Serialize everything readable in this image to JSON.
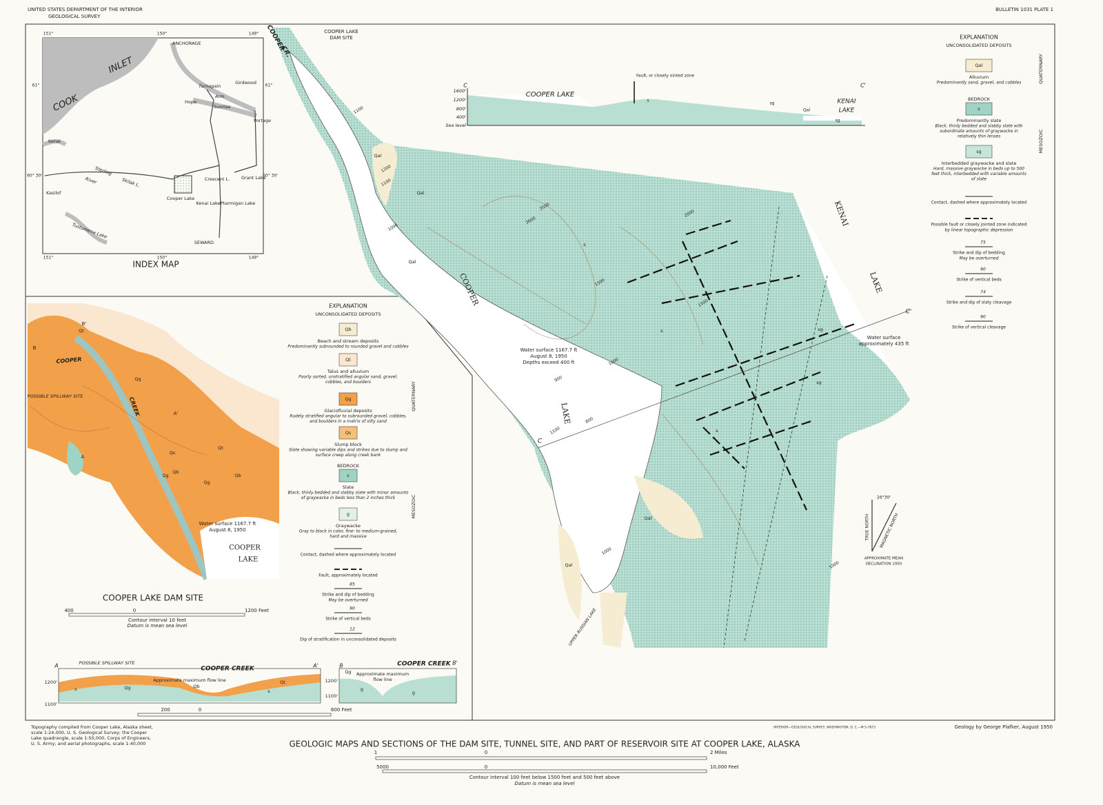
{
  "header": {
    "left_line1": "UNITED STATES DEPARTMENT OF THE INTERIOR",
    "left_line2": "GEOLOGICAL SURVEY",
    "right": "BULLETIN 1031 PLATE 1"
  },
  "index_map": {
    "title": "INDEX MAP",
    "places": [
      "ANCHORAGE",
      "Girdwood",
      "Hope",
      "Sunrise",
      "Portage",
      "Kenai",
      "Kasilof",
      "Crescent L.",
      "Grant Lake",
      "Cooper Lake",
      "Kenai Lake",
      "Ptarmigan Lake",
      "SEWARD",
      "Turnagain",
      "Arm",
      "COOK",
      "INLET",
      "Sterling",
      "River",
      "Skilak L.",
      "Tustumena Lake"
    ],
    "lon_labels": [
      "151°",
      "150°",
      "149°",
      "151°",
      "150°",
      "149°"
    ],
    "lat_labels": [
      "61°",
      "61°",
      "60° 30'",
      "60° 30'"
    ]
  },
  "dam_site": {
    "title": "COOPER LAKE DAM SITE",
    "labels": [
      "COOPER",
      "CREEK",
      "POSSIBLE SPILLWAY SITE",
      "Water surface 1167.7 ft",
      "August 8, 1950",
      "COOPER",
      "LAKE",
      "B",
      "B'",
      "A",
      "A'"
    ],
    "units": [
      "Qb",
      "Qt",
      "Qg",
      "Qs",
      "Qg",
      "Qt",
      "Qb",
      "Qg"
    ],
    "scale": [
      "400",
      "0",
      "1200 Feet"
    ],
    "contour_note": "Contour interval 10 feet",
    "datum_note": "Datum is mean sea level"
  },
  "dam_explanation": {
    "title": "EXPLANATION",
    "unconsolidated": "UNCONSOLIDATED DEPOSITS",
    "bedrock": "BEDROCK",
    "era_upper": "QUATERNARY",
    "era_lower": "MESOZOIC",
    "units": [
      {
        "code": "Qb",
        "name": "Beach and stream deposits",
        "desc": [
          "Predominantly subrounded to rounded gravel and cobbles"
        ]
      },
      {
        "code": "Qt",
        "name": "Talus and alluvium",
        "desc": [
          "Poorly sorted, unstratified angular sand, gravel,",
          "cobbles, and boulders"
        ]
      },
      {
        "code": "Qg",
        "name": "Glaciofluvial deposits",
        "desc": [
          "Rudely stratified angular to subrounded gravel, cobbles,",
          "and boulders in a matrix of silty sand"
        ]
      },
      {
        "code": "Qs",
        "name": "Slump block",
        "desc": [
          "Slate showing variable dips and strikes due to slump and",
          "surface creep along creek bank"
        ]
      },
      {
        "code": "s",
        "name": "Slate",
        "desc": [
          "Black, thinly bedded and slabby slate with minor amounts",
          "of graywacke in beds less than 2 inches thick"
        ]
      },
      {
        "code": "g",
        "name": "Graywacke",
        "desc": [
          "Gray to black in color, fine- to medium-grained,",
          "hard and massive"
        ]
      }
    ],
    "symbols": [
      {
        "sample": "",
        "text": [
          "Contact, dashed where approximately located"
        ]
      },
      {
        "sample": "",
        "text": [
          "Fault, approximately located"
        ]
      },
      {
        "sample": "85",
        "text": [
          "Strike and dip of bedding",
          "May be overturned"
        ]
      },
      {
        "sample": "90",
        "text": [
          "Strike of vertical beds"
        ]
      },
      {
        "sample": "12",
        "text": [
          "Dip of stratification in unconsolidated deposits"
        ]
      }
    ]
  },
  "main_map": {
    "labels": [
      "COOPER LAKE",
      "DAM SITE",
      "COOPER",
      "CR.",
      "COOPER",
      "LAKE",
      "KENAI",
      "LAKE",
      "Water surface 1167.7 ft",
      "August 8, 1950",
      "Depths exceed 400 ft",
      "Water surface",
      "approximately 435 ft",
      "UPPER RUSSIAN LAKE",
      "C",
      "C'"
    ],
    "units": [
      "Qal",
      "Qal",
      "Qal",
      "Qal",
      "Qal",
      "s",
      "s",
      "s",
      "sg",
      "sg"
    ],
    "contours": [
      "1100",
      "1200",
      "1100",
      "1000",
      "2500",
      "2600",
      "2000",
      "1500",
      "900",
      "1000",
      "800",
      "1100",
      "1500",
      "1000",
      "1000"
    ]
  },
  "main_explanation": {
    "title": "EXPLANATION",
    "unconsolidated": "UNCONSOLIDATED DEPOSITS",
    "bedrock": "BEDROCK",
    "era_upper": "QUATERNARY",
    "era_lower": "MESOZOIC",
    "units": [
      {
        "code": "Qal",
        "name": "Alluvium",
        "desc": [
          "Predominantly sand, gravel, and cobbles"
        ]
      },
      {
        "code": "s",
        "name": "Predominantly slate",
        "desc": [
          "Black, thinly bedded and slabby slate with",
          "subordinate amounts of graywacke in",
          "relatively thin lenses"
        ]
      },
      {
        "code": "sg",
        "name": "Interbedded graywacke and slate",
        "desc": [
          "Hard, massive graywacke in beds up to 500",
          "feet thick, interbedded with variable amounts",
          "of slate"
        ]
      }
    ],
    "symbols": [
      {
        "sample": "",
        "text": [
          "Contact, dashed where approximately located"
        ]
      },
      {
        "sample": "",
        "text": [
          "Possible fault or closely jointed zone indicated",
          "by linear topographic depression"
        ]
      },
      {
        "sample": "75",
        "text": [
          "Strike and dip of bedding",
          "May be overturned"
        ]
      },
      {
        "sample": "90",
        "text": [
          "Strike of vertical beds"
        ]
      },
      {
        "sample": "74",
        "text": [
          "Strike and dip of slaty cleavage"
        ]
      },
      {
        "sample": "90",
        "text": [
          "Strike of vertical cleavage"
        ]
      }
    ]
  },
  "section_c": {
    "ticks": [
      "1600'",
      "1200'",
      "800'",
      "400'",
      "Sea level"
    ],
    "labels": [
      "COOPER LAKE",
      "KENAI",
      "LAKE",
      "Fault, or closely ointed zone",
      "C",
      "C'",
      "s",
      "sg",
      "Qal",
      "sg"
    ]
  },
  "section_a": {
    "labels": [
      "POSSIBLE SPILLWAY SITE",
      "COOPER CREEK",
      "Approximate maximum flow line",
      "A",
      "A'",
      "Qg",
      "Qb",
      "Qt",
      "s",
      "s"
    ],
    "ticks": [
      "1200'",
      "1100'"
    ],
    "scale": [
      "200",
      "0",
      "600 Feet"
    ]
  },
  "section_b": {
    "labels": [
      "COOPER CREEK",
      "Approximate maximum",
      "flow line",
      "B",
      "B'",
      "Qg",
      "g",
      "g"
    ],
    "ticks": [
      "1200'",
      "1100'"
    ]
  },
  "north_arrow": {
    "true": "TRUE NORTH",
    "magnetic": "MAGNETIC NORTH",
    "angle": "26°30'",
    "note": [
      "APPROXIMATE MEAN",
      "DECLINATION 1950"
    ]
  },
  "footer": {
    "sources": [
      "Topography compiled from Cooper Lake, Alaska sheet,",
      "scale 1:24,000, U. S. Geological Survey; the Cooper",
      "Lake quadrangle, scale 1:50,000, Corps of Engineers,",
      "U. S. Army; and aerial photographs, scale 1:40,000"
    ],
    "printer": "INTERIOR—GEOLOGICAL SURVEY, WASHINGTON, D. C.—M 5-7873",
    "author": "Geology by George Plafker, August 1950",
    "title": "GEOLOGIC MAPS AND SECTIONS OF THE DAM SITE, TUNNEL SITE, AND PART OF RESERVOIR SITE AT COOPER LAKE, ALASKA",
    "scale_miles": [
      "1",
      "0",
      "2 Miles"
    ],
    "scale_feet": [
      "5000",
      "0",
      "10,000 Feet"
    ],
    "contour_note": "Contour interval 100 feet below 1500 feet and 500 feet above",
    "datum_note": "Datum is mean sea level"
  }
}
